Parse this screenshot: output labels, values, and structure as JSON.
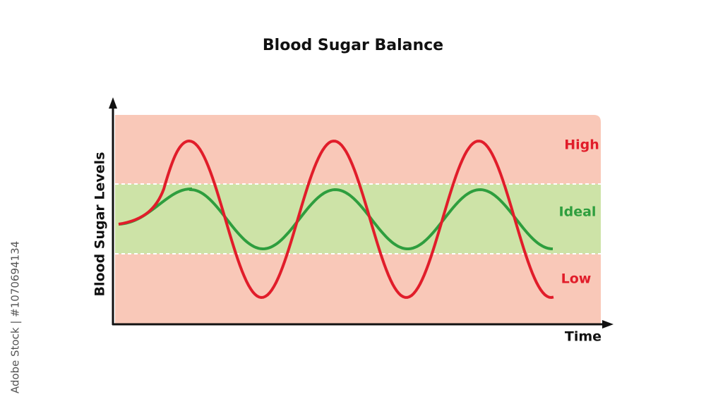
{
  "title": "Blood Sugar Balance",
  "y_axis_label": "Blood Sugar Levels",
  "x_axis_label": "Time",
  "zones": [
    {
      "label": "High"
    },
    {
      "label": "Ideal"
    },
    {
      "label": "Low"
    }
  ],
  "watermark": "Adobe Stock | #1070694134"
}
